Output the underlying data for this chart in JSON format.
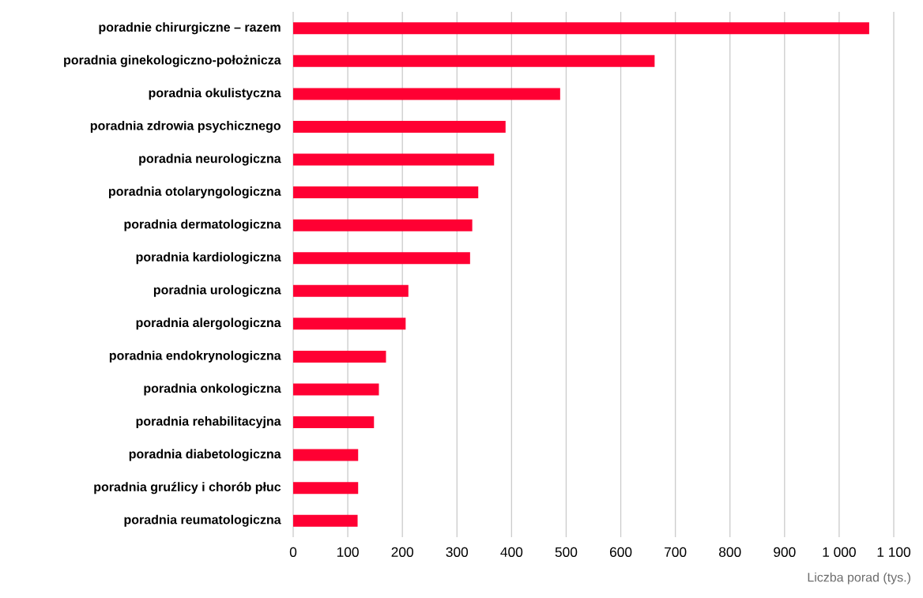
{
  "chart_data": {
    "type": "bar",
    "orientation": "horizontal",
    "xlabel": "Liczba porad (tys.)",
    "categories": [
      "poradnie chirurgiczne – razem",
      "poradnia ginekologiczno-położnicza",
      "poradnia okulistyczna",
      "poradnia zdrowia psychicznego",
      "poradnia neurologiczna",
      "poradnia otolaryngologiczna",
      "poradnia dermatologiczna",
      "poradnia kardiologiczna",
      "poradnia urologiczna",
      "poradnia alergologiczna",
      "poradnia endokrynologiczna",
      "poradnia onkologiczna",
      "poradnia rehabilitacyjna",
      "poradnia diabetologiczna",
      "poradnia gruźlicy i chorób płuc",
      "poradnia reumatologiczna"
    ],
    "values": [
      1055,
      662,
      489,
      389,
      368,
      339,
      328,
      324,
      211,
      206,
      170,
      157,
      148,
      119,
      119,
      118
    ],
    "color": "#ff0033",
    "xlim": [
      0,
      1100
    ],
    "xticks": [
      0,
      100,
      200,
      300,
      400,
      500,
      600,
      700,
      800,
      900,
      {
        "value": 1000,
        "label": "1 000"
      },
      {
        "value": 1100,
        "label": "1 100"
      }
    ],
    "grid": "x"
  }
}
